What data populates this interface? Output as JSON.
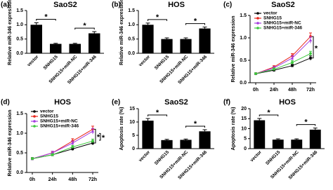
{
  "chart_data": [
    {
      "type": "bar",
      "panel": "(a)",
      "title": "SaoS2",
      "y_label": "Relative miR-346 expression",
      "categories": [
        "vector",
        "SNHG15",
        "SNHG15+miR-NC",
        "SNHG15+miR-346"
      ],
      "values": [
        1.0,
        0.33,
        0.33,
        0.7
      ],
      "errors": [
        0.07,
        0.02,
        0.02,
        0.06
      ],
      "color": "#000000",
      "ylim": [
        0,
        1.5
      ],
      "yticks": [
        {
          "value": 0,
          "label": "0.0"
        },
        0.5,
        {
          "value": 1,
          "label": "1.0"
        },
        1.5
      ],
      "annotations": [
        "*",
        "*"
      ]
    },
    {
      "type": "bar",
      "panel": "(b)",
      "title": "HOS",
      "y_label": "Relative miR-346 expression",
      "categories": [
        "vector",
        "SNHG15",
        "SNHG15+miR-NC",
        "SNHG15+miR-346"
      ],
      "values": [
        1.0,
        0.5,
        0.5,
        0.87
      ],
      "errors": [
        0.06,
        0.04,
        0.04,
        0.05
      ],
      "color": "#000000",
      "ylim": [
        0,
        1.5
      ],
      "yticks": [
        {
          "value": 0,
          "label": "0.0"
        },
        0.5,
        {
          "value": 1,
          "label": "1.0"
        },
        1.5
      ],
      "annotations": [
        "*",
        "*"
      ]
    },
    {
      "type": "line",
      "panel": "(c)",
      "title": "SaoS2",
      "y_label": "Relative miR-346 expression",
      "categories": [
        "0h",
        "24h",
        "48h",
        "72h"
      ],
      "series": [
        {
          "name": "vector",
          "color": "#000000",
          "values": [
            0.2,
            0.28,
            0.38,
            0.55
          ],
          "errors": [
            0.02,
            0.03,
            0.03,
            0.05
          ]
        },
        {
          "name": "SNHG15",
          "color": "#e8261c",
          "values": [
            0.2,
            0.35,
            0.6,
            1.03
          ],
          "errors": [
            0.02,
            0.03,
            0.05,
            0.08
          ]
        },
        {
          "name": "SNHG15+miR-NC",
          "color": "#a43ce0",
          "values": [
            0.2,
            0.33,
            0.55,
            0.95
          ],
          "errors": [
            0.02,
            0.03,
            0.05,
            0.07
          ]
        },
        {
          "name": "SNHG15+miR-346",
          "color": "#3cc83c",
          "values": [
            0.2,
            0.3,
            0.45,
            0.65
          ],
          "errors": [
            0.02,
            0.03,
            0.04,
            0.05
          ]
        }
      ],
      "ylim": [
        0,
        1.5
      ],
      "yticks": [
        {
          "value": 0,
          "label": "0.0"
        },
        0.5,
        {
          "value": 1,
          "label": "1.0"
        },
        1.5
      ],
      "annotations": [
        "*"
      ]
    },
    {
      "type": "line",
      "panel": "(d)",
      "title": "HOS",
      "y_label": "Relative miR-346 expression",
      "categories": [
        "0h",
        "24h",
        "48h",
        "72h"
      ],
      "series": [
        {
          "name": "vector",
          "color": "#000000",
          "values": [
            0.35,
            0.45,
            0.6,
            0.75
          ],
          "errors": [
            0.03,
            0.03,
            0.04,
            0.05
          ]
        },
        {
          "name": "SNHG15",
          "color": "#e8261c",
          "values": [
            0.35,
            0.5,
            0.8,
            1.1
          ],
          "errors": [
            0.03,
            0.04,
            0.06,
            0.08
          ]
        },
        {
          "name": "SNHG15+miR-NC",
          "color": "#a43ce0",
          "values": [
            0.35,
            0.5,
            0.75,
            1.05
          ],
          "errors": [
            0.03,
            0.04,
            0.05,
            0.07
          ]
        },
        {
          "name": "SNHG15+miR-346",
          "color": "#3cc83c",
          "values": [
            0.35,
            0.45,
            0.65,
            0.8
          ],
          "errors": [
            0.03,
            0.03,
            0.04,
            0.05
          ]
        }
      ],
      "ylim": [
        0,
        1.5
      ],
      "yticks": [
        {
          "value": 0,
          "label": "0.0"
        },
        0.5,
        {
          "value": 1,
          "label": "1.0"
        },
        1.5
      ],
      "annotations": [
        "*",
        "*"
      ]
    },
    {
      "type": "bar",
      "panel": "(e)",
      "title": "SaoS2",
      "y_label": "Apoptosis rate (%)",
      "categories": [
        "vector",
        "SNHG15",
        "SNHG15+miR-NC",
        "SNHG15+miR-346"
      ],
      "values": [
        10.5,
        3.2,
        3.3,
        6.5
      ],
      "errors": [
        0.8,
        0.3,
        0.3,
        0.6
      ],
      "color": "#000000",
      "ylim": [
        0,
        15
      ],
      "yticks": [
        0,
        5,
        10,
        15
      ],
      "annotations": [
        "*",
        "*"
      ]
    },
    {
      "type": "bar",
      "panel": "(f)",
      "title": "HOS",
      "y_label": "Apoptosis rate (%)",
      "categories": [
        "vector",
        "SNHG15",
        "SNHG15+miR-NC",
        "SNHG15+miR-346"
      ],
      "values": [
        14.2,
        4.5,
        4.5,
        9.5
      ],
      "errors": [
        0.9,
        0.4,
        0.4,
        0.8
      ],
      "color": "#000000",
      "ylim": [
        0,
        20
      ],
      "yticks": [
        0,
        5,
        10,
        15,
        20
      ],
      "annotations": [
        "*",
        "*"
      ]
    }
  ]
}
